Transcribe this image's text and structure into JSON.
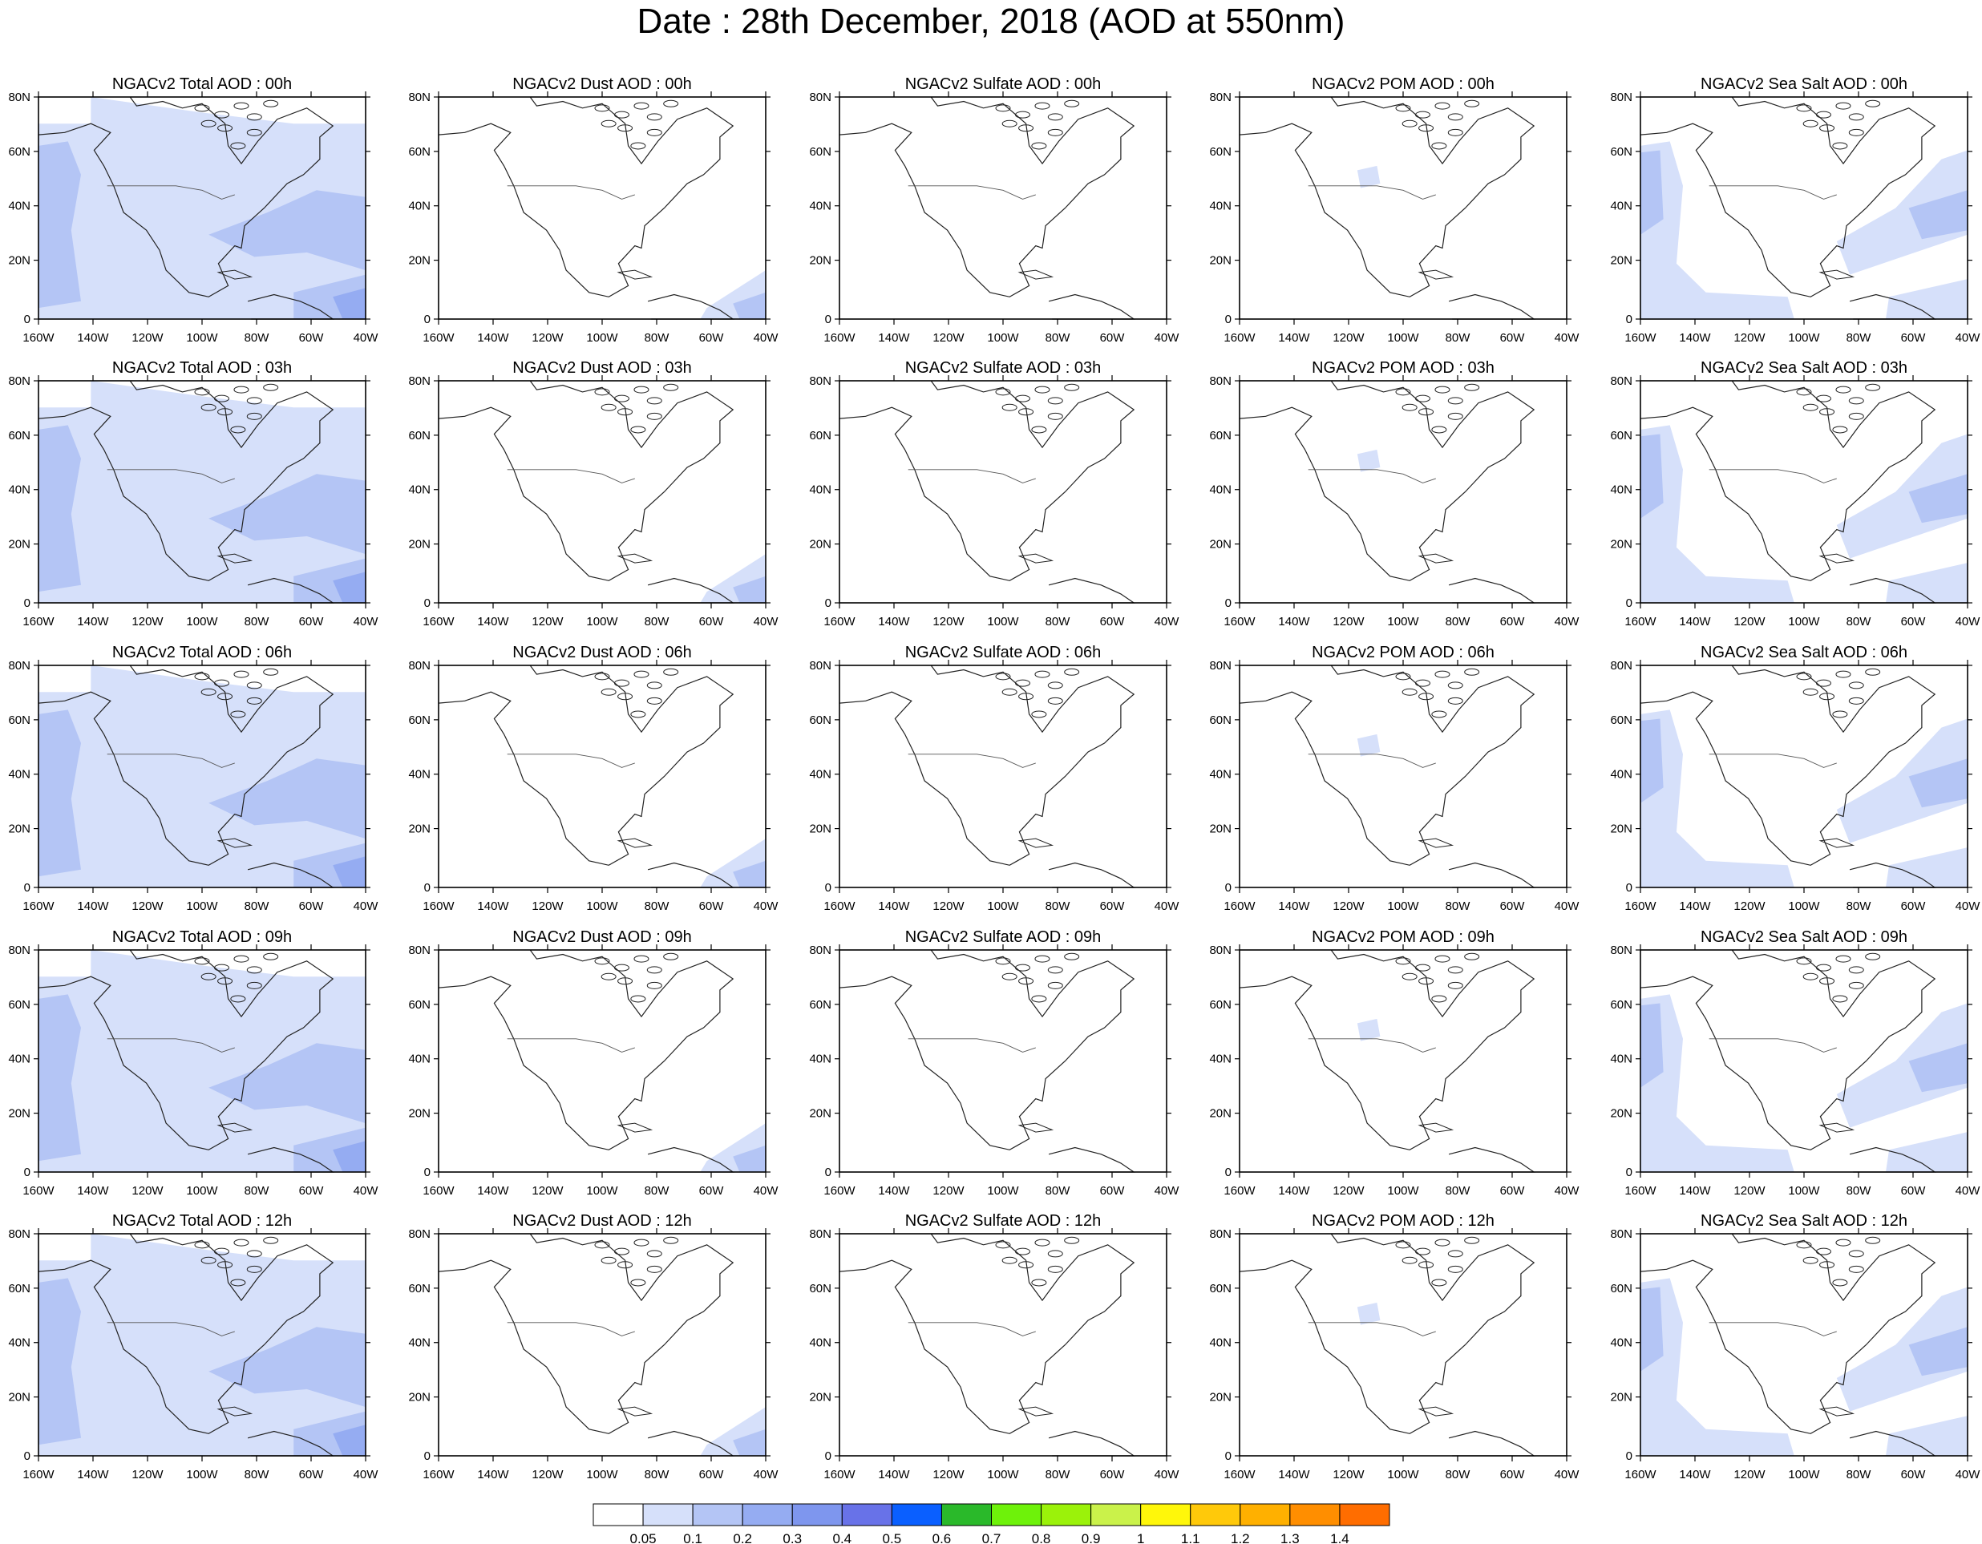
{
  "title": "Date : 28th December, 2018 (AOD at 550nm)",
  "panel_titles": [
    [
      "NGACv2 Total AOD : 00h",
      "NGACv2 Dust AOD : 00h",
      "NGACv2 Sulfate AOD : 00h",
      "NGACv2 POM AOD : 00h",
      "NGACv2 Sea Salt AOD : 00h"
    ],
    [
      "NGACv2 Total AOD : 03h",
      "NGACv2 Dust AOD : 03h",
      "NGACv2 Sulfate AOD : 03h",
      "NGACv2 POM AOD : 03h",
      "NGACv2 Sea Salt AOD : 03h"
    ],
    [
      "NGACv2 Total AOD : 06h",
      "NGACv2 Dust AOD : 06h",
      "NGACv2 Sulfate AOD : 06h",
      "NGACv2 POM AOD : 06h",
      "NGACv2 Sea Salt AOD : 06h"
    ],
    [
      "NGACv2 Total AOD : 09h",
      "NGACv2 Dust AOD : 09h",
      "NGACv2 Sulfate AOD : 09h",
      "NGACv2 POM AOD : 09h",
      "NGACv2 Sea Salt  AOD : 09h"
    ],
    [
      "NGACv2 Total AOD  : 12h",
      "NGACv2 Dust AOD : 12h",
      "NGACv2 Sulfate AOD : 12h",
      "NGACv2 POM  AOD : 12h",
      "NGACv2 Sea Salt  AOD : 12h"
    ]
  ],
  "axes": {
    "lat_ticks": [
      "80N",
      "60N",
      "40N",
      "20N",
      "0"
    ],
    "lon_ticks": [
      "160W",
      "140W",
      "120W",
      "100W",
      "80W",
      "60W",
      "40W"
    ]
  },
  "colorbar": {
    "labels": [
      "0.05",
      "0.1",
      "0.2",
      "0.3",
      "0.4",
      "0.5",
      "0.6",
      "0.7",
      "0.8",
      "0.9",
      "1",
      "1.1",
      "1.2",
      "1.3",
      "1.4"
    ],
    "colors": [
      "#ffffff",
      "#d6e0fa",
      "#b4c5f5",
      "#95acf2",
      "#7e96ee",
      "#6872e8",
      "#0a5fff",
      "#0d9b98",
      "#2ab92a",
      "#6ef20a",
      "#9bf20a",
      "#caf24a",
      "#fff70a",
      "#ffc90a",
      "#ffb000",
      "#ff8e00",
      "#ff6d00",
      "#ff2200"
    ]
  }
}
